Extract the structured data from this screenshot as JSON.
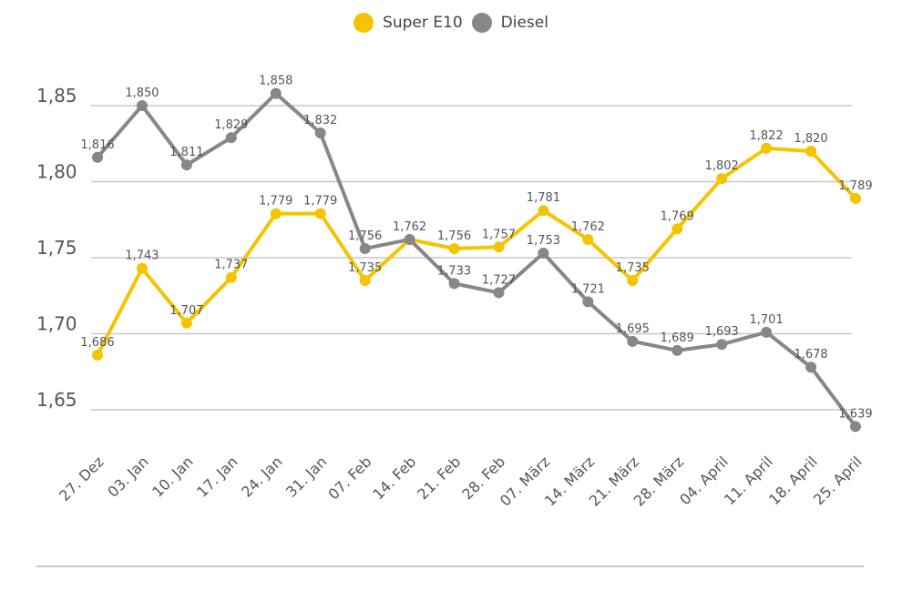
{
  "chart_data": {
    "type": "line",
    "title": "",
    "xlabel": "",
    "ylabel": "",
    "ylim": [
      1.625,
      1.875
    ],
    "yticks": [
      1.85,
      1.8,
      1.75,
      1.7,
      1.65
    ],
    "ytick_labels": [
      "1,85",
      "1,80",
      "1,75",
      "1,70",
      "1,65"
    ],
    "grid": true,
    "legend_position": "top-center",
    "categories": [
      "27. Dez",
      "03. Jan",
      "10. Jan",
      "17. Jan",
      "24. Jan",
      "31. Jan",
      "07. Feb",
      "14. Feb",
      "21. Feb",
      "28. Feb",
      "07. März",
      "14. März",
      "21. März",
      "28. März",
      "04. April",
      "11. April",
      "18. April",
      "25. April"
    ],
    "series": [
      {
        "name": "Super E10",
        "color": "#F5C400",
        "values": [
          1.686,
          1.743,
          1.707,
          1.737,
          1.779,
          1.779,
          1.735,
          1.762,
          1.756,
          1.757,
          1.781,
          1.762,
          1.735,
          1.769,
          1.802,
          1.822,
          1.82,
          1.789
        ]
      },
      {
        "name": "Diesel",
        "color": "#878787",
        "values": [
          1.816,
          1.85,
          1.811,
          1.829,
          1.858,
          1.832,
          1.756,
          1.762,
          1.733,
          1.727,
          1.753,
          1.721,
          1.695,
          1.689,
          1.693,
          1.701,
          1.678,
          1.639
        ]
      }
    ]
  }
}
